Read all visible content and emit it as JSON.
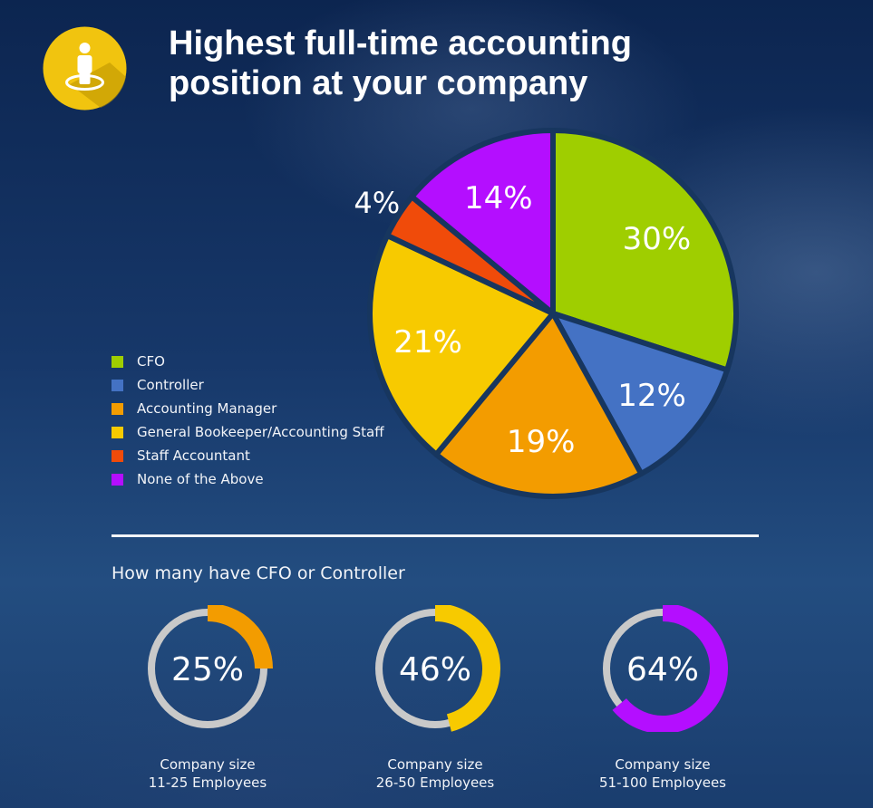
{
  "header": {
    "title_line1": "Highest full-time accounting",
    "title_line2": "position at your company",
    "icon": "person-on-marker-icon"
  },
  "colors": {
    "cfo": "#9fce00",
    "controller": "#4472c4",
    "accounting_manager": "#f39c00",
    "general_bookkeeper": "#f7ca00",
    "staff_accountant": "#f04b0a",
    "none_of_the_above": "#b40eff",
    "ring_track": "#c9c9c9",
    "logo": "#f1c40f"
  },
  "chart_data": [
    {
      "type": "pie",
      "title": "Highest full-time accounting position at your company",
      "legend_position": "left",
      "categories": [
        "CFO",
        "Controller",
        "Accounting Manager",
        "General Bookeeper/Accounting Staff",
        "Staff Accountant",
        "None of the Above"
      ],
      "values": [
        30,
        12,
        19,
        21,
        4,
        14
      ],
      "labels": [
        "30%",
        "12%",
        "19%",
        "21%",
        "4%",
        "14%"
      ],
      "colors": [
        "#9fce00",
        "#4472c4",
        "#f39c00",
        "#f7ca00",
        "#f04b0a",
        "#b40eff"
      ]
    },
    {
      "type": "pie",
      "title": "How many have CFO or Controller",
      "series": [
        {
          "name": "Company size 11-25 Employees",
          "value": 25,
          "label": "25%",
          "color": "#f39c00",
          "caption1": "Company size",
          "caption2": "11-25 Employees"
        },
        {
          "name": "Company size 26-50 Employees",
          "value": 46,
          "label": "46%",
          "color": "#f7ca00",
          "caption1": "Company size",
          "caption2": "26-50 Employees"
        },
        {
          "name": "Company size 51-100 Employees",
          "value": 64,
          "label": "64%",
          "color": "#b40eff",
          "caption1": "Company size",
          "caption2": "51-100 Employees"
        }
      ]
    }
  ]
}
